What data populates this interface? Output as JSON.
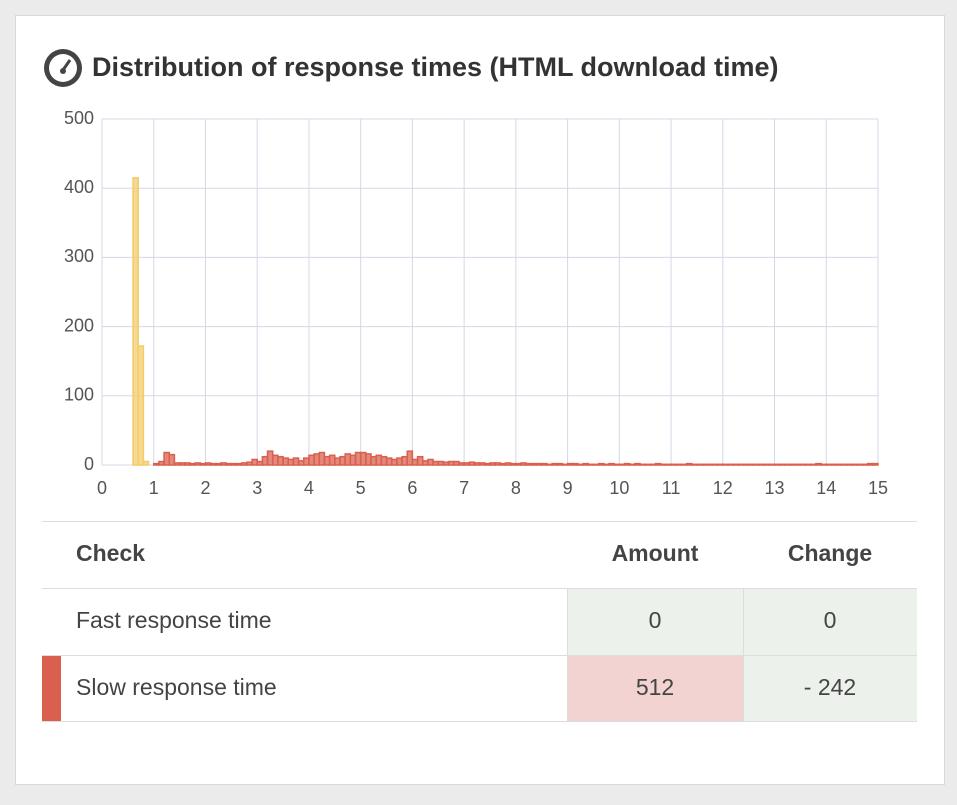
{
  "title": "Distribution of response times (HTML download time)",
  "chart_data": {
    "type": "histogram",
    "xlim": [
      0,
      15
    ],
    "xticks": [
      0,
      1,
      2,
      3,
      4,
      5,
      6,
      7,
      8,
      9,
      10,
      11,
      12,
      13,
      14,
      15
    ],
    "ylim": [
      0,
      500
    ],
    "yticks": [
      0,
      100,
      200,
      300,
      400,
      500
    ],
    "grid": true,
    "series": [
      {
        "color": "#5a9a4a",
        "bins": [
          0,
          0.1,
          0.2,
          0.3,
          0.4,
          0.5
        ],
        "values": [
          0,
          0,
          0,
          0,
          0
        ]
      },
      {
        "color": "#f3cc6b",
        "bins": [
          0.5,
          0.6,
          0.7,
          0.8,
          0.9,
          1.0
        ],
        "values": [
          0,
          415,
          172,
          5,
          0
        ]
      },
      {
        "color": "#d9604f",
        "bins": [
          1,
          1.1,
          1.2,
          1.3,
          1.4,
          1.5,
          1.6,
          1.7,
          1.8,
          1.9,
          2,
          2.1,
          2.2,
          2.3,
          2.4,
          2.5,
          2.6,
          2.7,
          2.8,
          2.9,
          3,
          3.1,
          3.2,
          3.3,
          3.4,
          3.5,
          3.6,
          3.7,
          3.8,
          3.9,
          4,
          4.1,
          4.2,
          4.3,
          4.4,
          4.5,
          4.6,
          4.7,
          4.8,
          4.9,
          5,
          5.1,
          5.2,
          5.3,
          5.4,
          5.5,
          5.6,
          5.7,
          5.8,
          5.9,
          6,
          6.1,
          6.2,
          6.3,
          6.4,
          6.5,
          6.6,
          6.7,
          6.8,
          6.9,
          7,
          7.1,
          7.2,
          7.3,
          7.4,
          7.5,
          7.6,
          7.7,
          7.8,
          7.9,
          8,
          8.1,
          8.2,
          8.3,
          8.4,
          8.5,
          8.6,
          8.7,
          8.8,
          8.9,
          9,
          9.1,
          9.2,
          9.3,
          9.4,
          9.5,
          9.6,
          9.7,
          9.8,
          9.9,
          10,
          10.1,
          10.2,
          10.3,
          10.4,
          10.5,
          10.6,
          10.7,
          10.8,
          10.9,
          11,
          11.1,
          11.2,
          11.3,
          11.4,
          11.5,
          11.6,
          11.7,
          11.8,
          11.9,
          12,
          12.1,
          12.2,
          12.3,
          12.4,
          12.5,
          12.6,
          12.7,
          12.8,
          12.9,
          13,
          13.1,
          13.2,
          13.3,
          13.4,
          13.5,
          13.6,
          13.7,
          13.8,
          13.9,
          14,
          14.1,
          14.2,
          14.3,
          14.4,
          14.5,
          14.6,
          14.7,
          14.8,
          14.9,
          15
        ],
        "values": [
          2,
          5,
          18,
          15,
          3,
          3,
          3,
          2,
          3,
          2,
          3,
          2,
          2,
          3,
          2,
          2,
          2,
          3,
          4,
          8,
          5,
          12,
          20,
          14,
          12,
          10,
          8,
          10,
          6,
          10,
          14,
          16,
          18,
          12,
          14,
          10,
          12,
          16,
          14,
          18,
          18,
          16,
          12,
          14,
          12,
          10,
          8,
          10,
          12,
          20,
          8,
          12,
          6,
          8,
          5,
          5,
          4,
          5,
          5,
          3,
          3,
          4,
          3,
          3,
          2,
          3,
          3,
          2,
          3,
          2,
          2,
          3,
          2,
          2,
          2,
          2,
          1,
          2,
          2,
          1,
          2,
          2,
          1,
          2,
          1,
          1,
          2,
          1,
          2,
          1,
          1,
          2,
          1,
          2,
          1,
          1,
          1,
          2,
          1,
          1,
          1,
          1,
          1,
          2,
          1,
          1,
          1,
          1,
          1,
          1,
          1,
          1,
          1,
          1,
          1,
          1,
          1,
          1,
          1,
          1,
          1,
          1,
          1,
          1,
          1,
          1,
          1,
          1,
          2,
          1,
          1,
          1,
          1,
          1,
          1,
          1,
          1,
          1,
          2,
          2
        ]
      }
    ]
  },
  "table": {
    "header": [
      "Check",
      "Amount",
      "Change"
    ],
    "rows": [
      [
        "Fast response time",
        0,
        0
      ],
      [
        "Slow response time",
        512,
        "- 242"
      ]
    ]
  }
}
